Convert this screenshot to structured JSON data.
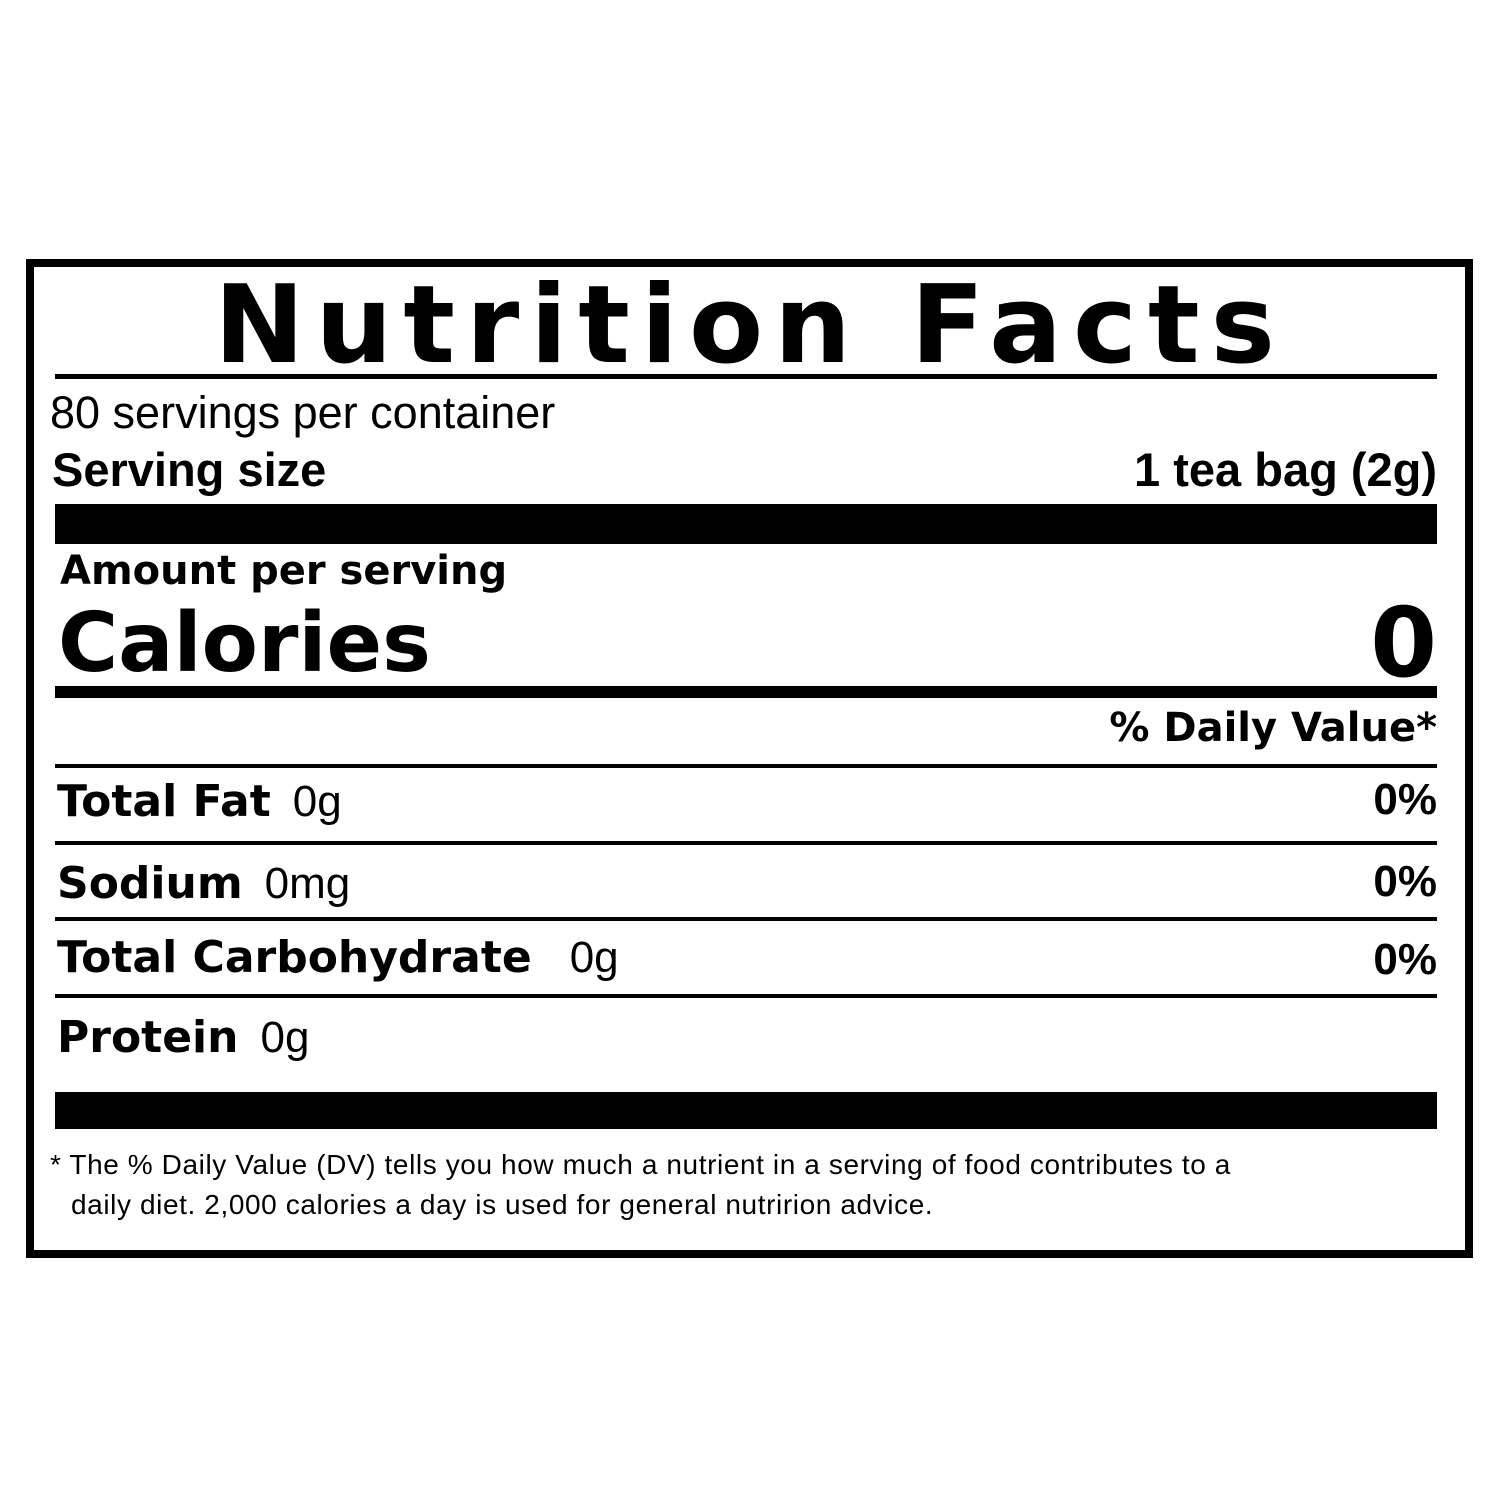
{
  "title": "Nutrition Facts",
  "servings_per_container": "80 servings per container",
  "serving_size": {
    "label": "Serving size",
    "value": "1 tea bag (2g)"
  },
  "amount_per_serving": "Amount per serving",
  "calories": {
    "label": "Calories",
    "value": "0"
  },
  "daily_value_header": "% Daily Value*",
  "nutrients": [
    {
      "name": "Total Fat",
      "amount": "0g",
      "dv": "0%"
    },
    {
      "name": "Sodium",
      "amount": "0mg",
      "dv": "0%"
    },
    {
      "name": "Total Carbohydrate",
      "amount": "0g",
      "dv": "0%"
    },
    {
      "name": "Protein",
      "amount": "0g",
      "dv": ""
    }
  ],
  "footnote_line1": "* The % Daily Value (DV) tells you how much a nutrient in a serving of food contributes to a",
  "footnote_line2": "daily diet. 2,000 calories a day is used for general nutririon advice."
}
